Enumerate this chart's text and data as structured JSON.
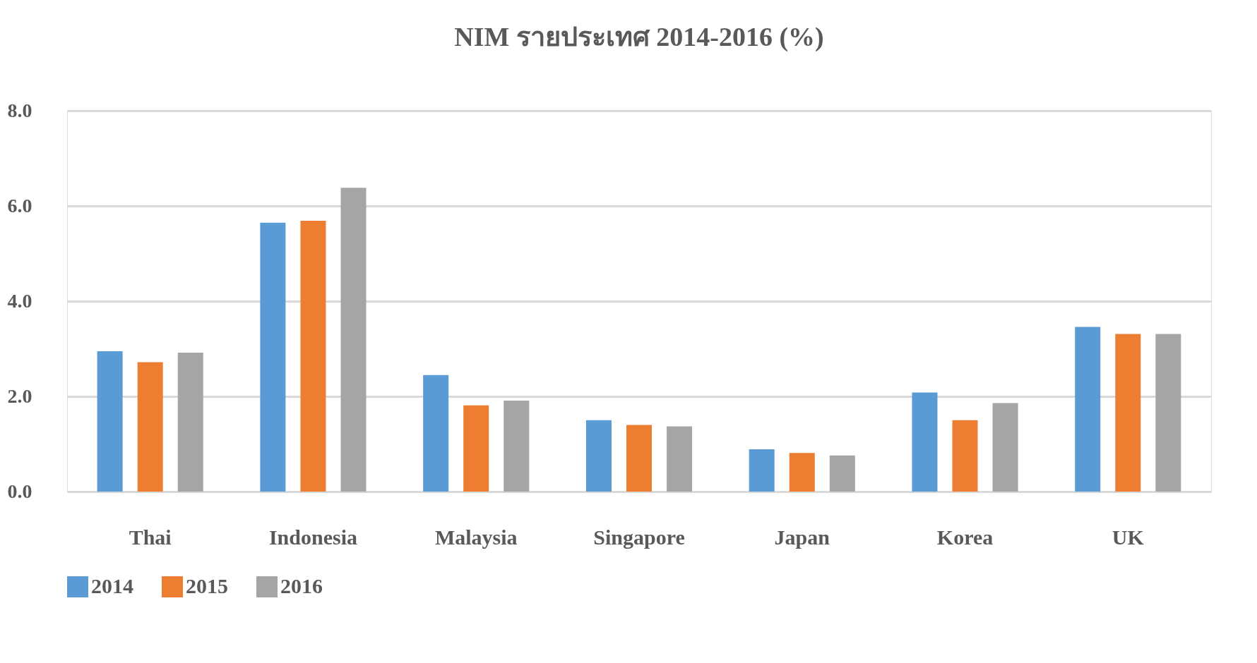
{
  "chart_data": {
    "type": "bar",
    "title": "NIM รายประเทศ 2014-2016 (%)",
    "categories": [
      "Thai",
      "Indonesia",
      "Malaysia",
      "Singapore",
      "Japan",
      "Korea",
      "UK"
    ],
    "series": [
      {
        "name": "2014",
        "color": "#5b9bd5",
        "values": [
          2.95,
          5.65,
          2.45,
          1.5,
          0.89,
          2.08,
          3.46
        ]
      },
      {
        "name": "2015",
        "color": "#ed7d31",
        "values": [
          2.72,
          5.69,
          1.81,
          1.4,
          0.81,
          1.5,
          3.31
        ]
      },
      {
        "name": "2016",
        "color": "#a5a5a5",
        "values": [
          2.92,
          6.38,
          1.91,
          1.37,
          0.76,
          1.86,
          3.31
        ]
      }
    ],
    "ylim": [
      0,
      8
    ],
    "yticks": [
      {
        "value": 0,
        "label": "0.0"
      },
      {
        "value": 2,
        "label": "2.0"
      },
      {
        "value": 4,
        "label": "4.0"
      },
      {
        "value": 6,
        "label": "6.0"
      },
      {
        "value": 8,
        "label": "8.0"
      }
    ],
    "grid": "y",
    "legend": "bottom"
  }
}
